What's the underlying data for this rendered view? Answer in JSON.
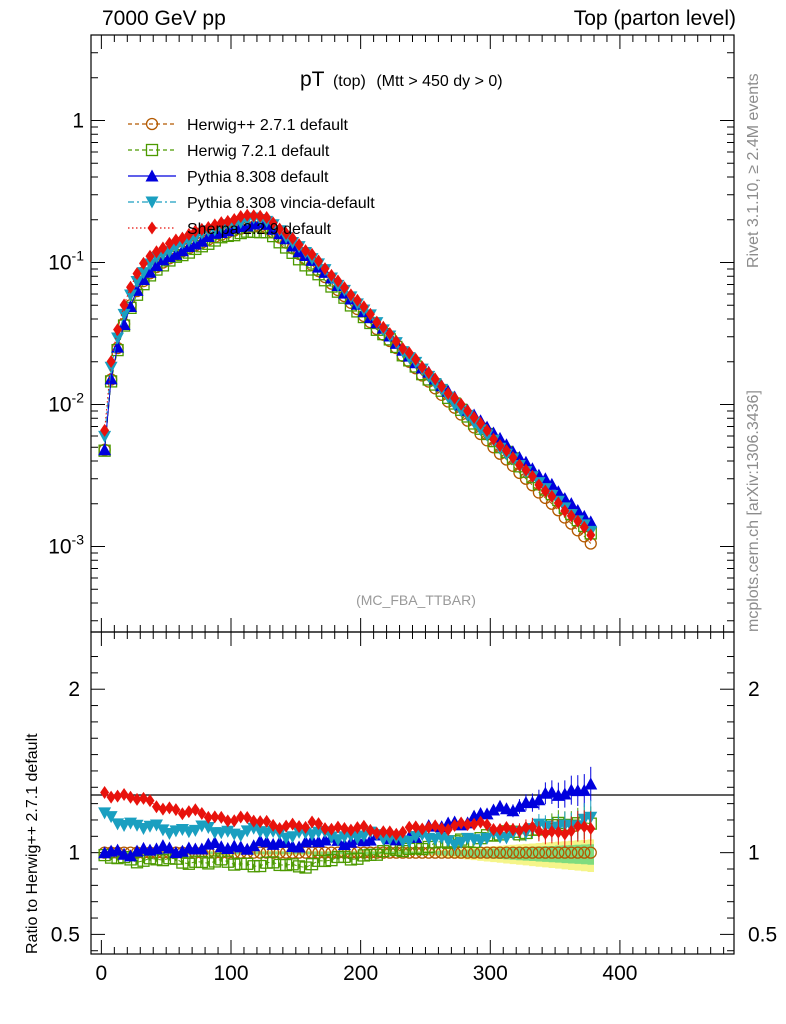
{
  "header": {
    "left": "7000 GeV pp",
    "right": "Top (parton level)"
  },
  "side_labels": {
    "rivet": "Rivet 3.1.10, ≥ 2.4M events",
    "mcplots": "mcplots.cern.ch [arXiv:1306.3436]"
  },
  "chart_data": [
    {
      "type": "scatter",
      "panel": "main",
      "title_main": "pT",
      "title_sub": "(top)",
      "title_cut": "(Mtt > 450 dy > 0)",
      "watermark": "(MC_FBA_TTBAR)",
      "yscale": "log",
      "ylim": [
        0.00025,
        4
      ],
      "xlim": [
        -8,
        488
      ],
      "ytick_labels": [
        "1",
        "10^-1",
        "10^-2",
        "10^-3"
      ],
      "legend_position": "top-left",
      "series": [
        {
          "name": "Herwig++ 2.7.1 default",
          "color": "#b35900",
          "marker": "open-circle",
          "line": "dashed"
        },
        {
          "name": "Herwig 7.2.1 default",
          "color": "#4c9a00",
          "marker": "open-square",
          "line": "dashed"
        },
        {
          "name": "Pythia 8.308 default",
          "color": "#0000dd",
          "marker": "filled-triangle-up",
          "line": "solid"
        },
        {
          "name": "Pythia 8.308 vincia-default",
          "color": "#1a9fc0",
          "marker": "filled-triangle-down",
          "line": "dashdot"
        },
        {
          "name": "Sherpa 2.2.9 default",
          "color": "#e8120c",
          "marker": "filled-diamond",
          "line": "dotted"
        }
      ],
      "x_bin_centers_start": 2.5,
      "bin_width": 5,
      "reference_values_herwigpp": [
        0.0048,
        0.015,
        0.025,
        0.037,
        0.05,
        0.063,
        0.074,
        0.084,
        0.093,
        0.1,
        0.107,
        0.114,
        0.12,
        0.126,
        0.132,
        0.138,
        0.145,
        0.151,
        0.157,
        0.163,
        0.168,
        0.173,
        0.177,
        0.179,
        0.178,
        0.174,
        0.163,
        0.15,
        0.138,
        0.126,
        0.115,
        0.105,
        0.096,
        0.087,
        0.079,
        0.071,
        0.064,
        0.058,
        0.052,
        0.047,
        0.042,
        0.038,
        0.034,
        0.031,
        0.028,
        0.025,
        0.022,
        0.02,
        0.018,
        0.016,
        0.0145,
        0.013,
        0.0117,
        0.0105,
        0.0095,
        0.0085,
        0.0077,
        0.0069,
        0.0062,
        0.0056,
        0.005,
        0.0045,
        0.0041,
        0.0037,
        0.0033,
        0.003,
        0.0027,
        0.0024,
        0.0022,
        0.002,
        0.0018,
        0.0016,
        0.00145,
        0.0013,
        0.00118,
        0.00105
      ]
    },
    {
      "type": "scatter",
      "panel": "ratio",
      "ylabel": "Ratio to Herwig++ 2.7.1 default",
      "xlim": [
        -8,
        488
      ],
      "ylim": [
        0.38,
        2.35
      ],
      "x_tick_labels": [
        "0",
        "100",
        "200",
        "300",
        "400"
      ],
      "y_tick_labels": [
        "0.5",
        "1",
        "2"
      ],
      "reference_line": 1,
      "band_colors": {
        "inner": "#7fdc7f",
        "outer": "#f5f58a"
      }
    }
  ]
}
